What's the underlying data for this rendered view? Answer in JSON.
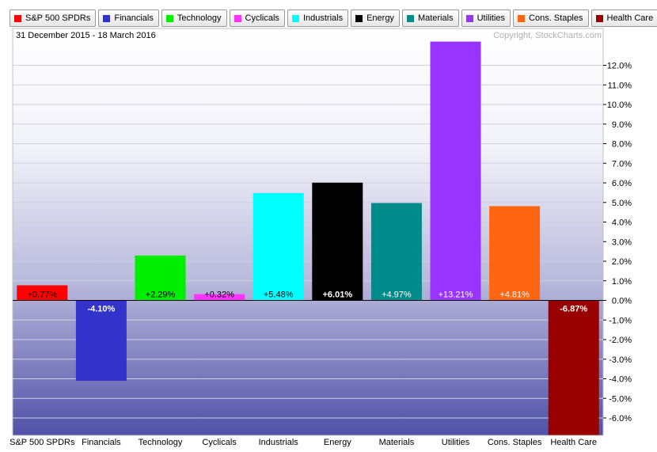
{
  "legend": [
    {
      "label": "S&P 500 SPDRs",
      "color": "#ff0000"
    },
    {
      "label": "Financials",
      "color": "#3333cc"
    },
    {
      "label": "Technology",
      "color": "#00ee00"
    },
    {
      "label": "Cyclicals",
      "color": "#ff33ff"
    },
    {
      "label": "Industrials",
      "color": "#00ffff"
    },
    {
      "label": "Energy",
      "color": "#000000"
    },
    {
      "label": "Materials",
      "color": "#008b8b"
    },
    {
      "label": "Utilities",
      "color": "#9933ff"
    },
    {
      "label": "Cons. Staples",
      "color": "#ff6611"
    },
    {
      "label": "Health Care",
      "color": "#990000"
    }
  ],
  "date_range": "31 December 2015 - 18 March 2016",
  "copyright": "Copyright, StockCharts.com",
  "chart_data": {
    "type": "bar",
    "categories": [
      "S&P 500 SPDRs",
      "Financials",
      "Technology",
      "Cyclicals",
      "Industrials",
      "Energy",
      "Materials",
      "Utilities",
      "Cons. Staples",
      "Health Care"
    ],
    "values": [
      0.77,
      -4.1,
      2.29,
      0.32,
      5.48,
      6.01,
      4.97,
      13.21,
      4.81,
      -6.87
    ],
    "data_labels": [
      "+0.77%",
      "-4.10%",
      "+2.29%",
      "+0.32%",
      "+5.48%",
      "+6.01%",
      "+4.97%",
      "+13.21%",
      "+4.81%",
      "-6.87%"
    ],
    "colors": [
      "#ff0000",
      "#3333cc",
      "#00ee00",
      "#ff33ff",
      "#00ffff",
      "#000000",
      "#008b8b",
      "#9933ff",
      "#ff6611",
      "#990000"
    ],
    "label_colors": [
      "#000000",
      "#ffffff",
      "#000000",
      "#000000",
      "#000000",
      "#ffffff",
      "#ffffff",
      "#ffffff",
      "#ffffff",
      "#ffffff"
    ],
    "y_ticks": [
      12.0,
      11.0,
      10.0,
      9.0,
      8.0,
      7.0,
      6.0,
      5.0,
      4.0,
      3.0,
      2.0,
      1.0,
      0.0,
      -1.0,
      -2.0,
      -3.0,
      -4.0,
      -5.0,
      -6.0
    ],
    "y_tick_labels": [
      "12.0%",
      "11.0%",
      "10.0%",
      "9.0%",
      "8.0%",
      "7.0%",
      "6.0%",
      "5.0%",
      "4.0%",
      "3.0%",
      "2.0%",
      "1.0%",
      "0.0%",
      "-1.0%",
      "-2.0%",
      "-3.0%",
      "-4.0%",
      "-5.0%",
      "-6.0%"
    ],
    "ylim": [
      -6.9,
      13.21
    ],
    "grid": true,
    "legend_position": "top"
  }
}
